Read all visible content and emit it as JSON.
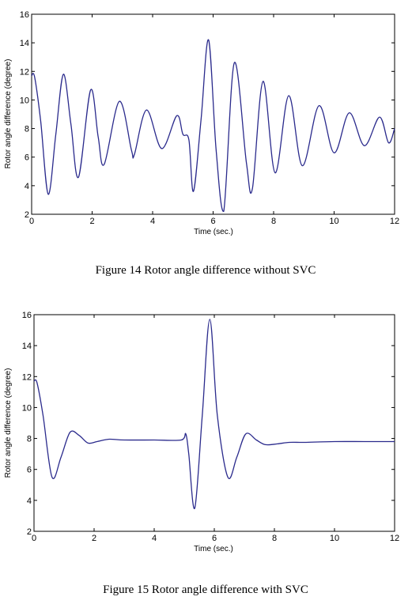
{
  "chart_data": [
    {
      "type": "line",
      "caption": "Figure 14 Rotor angle difference without SVC",
      "title": "",
      "xlabel": "Time (sec.)",
      "ylabel": "Rotor angle difference (degree)",
      "xlim": [
        0,
        12
      ],
      "ylim": [
        2,
        16
      ],
      "xticks": [
        0,
        2,
        4,
        6,
        8,
        10,
        12
      ],
      "yticks": [
        2,
        4,
        6,
        8,
        10,
        12,
        14,
        16
      ],
      "grid": false,
      "color": "#2a2a8c",
      "series": [
        {
          "x": [
            0,
            0.1,
            0.3,
            0.55,
            0.8,
            1.05,
            1.3,
            1.55,
            1.95,
            2.2,
            2.4,
            2.9,
            3.3,
            3.4,
            3.8,
            4.3,
            4.8,
            5.0,
            5.2,
            5.35,
            5.6,
            5.85,
            6.1,
            6.35,
            6.7,
            7.1,
            7.3,
            7.65,
            8.05,
            8.5,
            8.95,
            9.5,
            10.0,
            10.5,
            11.0,
            11.5,
            11.8,
            12.0
          ],
          "y": [
            11.7,
            11.6,
            8.5,
            3.4,
            7.6,
            11.8,
            8.3,
            4.6,
            10.7,
            7.4,
            5.5,
            9.9,
            6.5,
            6.2,
            9.3,
            6.6,
            8.9,
            7.6,
            7.2,
            3.6,
            8.6,
            14.2,
            6.5,
            2.2,
            12.6,
            5.6,
            3.8,
            11.3,
            4.9,
            10.3,
            5.4,
            9.6,
            6.3,
            9.1,
            6.8,
            8.8,
            7.0,
            8.0
          ]
        }
      ]
    },
    {
      "type": "line",
      "caption": "Figure 15 Rotor angle difference with SVC",
      "title": "",
      "xlabel": "Time (sec.)",
      "ylabel": "Rotor angle difference (degree)",
      "xlim": [
        0,
        12
      ],
      "ylim": [
        2,
        16
      ],
      "xticks": [
        0,
        2,
        4,
        6,
        8,
        10,
        12
      ],
      "yticks": [
        2,
        4,
        6,
        8,
        10,
        12,
        14,
        16
      ],
      "grid": false,
      "color": "#2a2a8c",
      "series": [
        {
          "x": [
            0,
            0.1,
            0.3,
            0.6,
            0.9,
            1.2,
            1.5,
            1.8,
            2.1,
            2.5,
            3.0,
            4.0,
            4.9,
            5.05,
            5.15,
            5.35,
            5.6,
            5.85,
            6.1,
            6.45,
            6.75,
            7.05,
            7.4,
            7.7,
            8.1,
            8.5,
            9.0,
            10.0,
            11.0,
            12.0
          ],
          "y": [
            11.7,
            11.6,
            9.5,
            5.5,
            6.8,
            8.4,
            8.2,
            7.7,
            7.8,
            7.95,
            7.9,
            7.9,
            7.9,
            8.3,
            7.0,
            3.5,
            9.5,
            15.7,
            9.5,
            5.5,
            6.8,
            8.3,
            7.9,
            7.6,
            7.65,
            7.75,
            7.75,
            7.8,
            7.8,
            7.8
          ]
        }
      ]
    }
  ]
}
